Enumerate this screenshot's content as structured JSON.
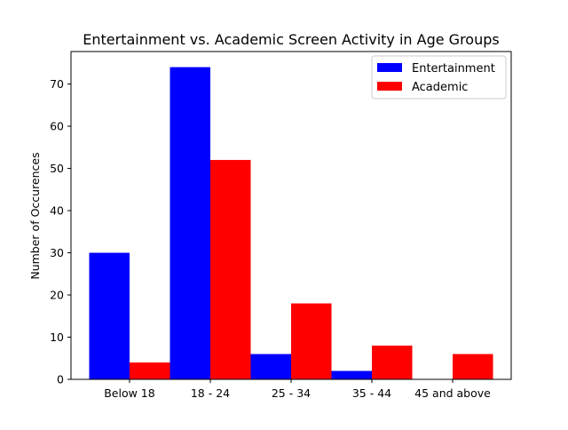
{
  "chart_data": {
    "type": "bar",
    "title": "Entertainment vs. Academic Screen Activity in Age Groups",
    "xlabel": "",
    "ylabel": "Number of Occurences",
    "categories": [
      "Below 18",
      "18 - 24",
      "25 - 34",
      "35 - 44",
      "45 and above"
    ],
    "series": [
      {
        "name": "Entertainment",
        "values": [
          30,
          74,
          6,
          2,
          0
        ],
        "color": "#0000ff"
      },
      {
        "name": "Academic",
        "values": [
          4,
          52,
          18,
          8,
          6
        ],
        "color": "#ff0000"
      }
    ],
    "ylim": [
      0,
      77.7
    ],
    "yticks": [
      0,
      10,
      20,
      30,
      40,
      50,
      60,
      70
    ],
    "grid": false,
    "legend_position": "top-right"
  }
}
